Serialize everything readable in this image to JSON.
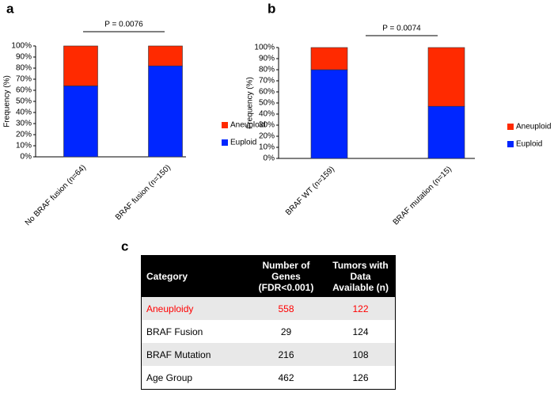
{
  "panels": [
    "a",
    "b",
    "c"
  ],
  "chart_data": [
    {
      "type": "bar",
      "stacked": true,
      "annotation": "P = 0.0076",
      "y_label": "Frequency (%)",
      "categories": [
        "No BRAF fusion (n=64)",
        "BRAF fusion (n=150)"
      ],
      "series": [
        {
          "name": "Euploid",
          "color": "#0026ff",
          "values": [
            64,
            82
          ]
        },
        {
          "name": "Aneuploid",
          "color": "#ff2a00",
          "values": [
            36,
            18
          ]
        }
      ],
      "ylim": [
        0,
        100
      ],
      "yticks": [
        {
          "value": 0,
          "label": "0%"
        },
        {
          "value": 10,
          "label": "10%"
        },
        {
          "value": 20,
          "label": "20%"
        },
        {
          "value": 30,
          "label": "30%"
        },
        {
          "value": 40,
          "label": "40%"
        },
        {
          "value": 50,
          "label": "50%"
        },
        {
          "value": 60,
          "label": "60%"
        },
        {
          "value": 70,
          "label": "70%"
        },
        {
          "value": 80,
          "label": "80%"
        },
        {
          "value": 90,
          "label": "90%"
        },
        {
          "value": 100,
          "label": "100%"
        }
      ]
    },
    {
      "type": "bar",
      "stacked": true,
      "annotation": "P = 0.0074",
      "y_label": "Frequency (%)",
      "categories": [
        "BRAF WT (n=159)",
        "BRAF mutation (n=15)"
      ],
      "series": [
        {
          "name": "Euploid",
          "color": "#0026ff",
          "values": [
            80,
            47
          ]
        },
        {
          "name": "Aneuploid",
          "color": "#ff2a00",
          "values": [
            20,
            53
          ]
        }
      ],
      "ylim": [
        0,
        100
      ],
      "yticks": [
        {
          "value": 0,
          "label": "0%"
        },
        {
          "value": 10,
          "label": "10%"
        },
        {
          "value": 20,
          "label": "20%"
        },
        {
          "value": 30,
          "label": "30%"
        },
        {
          "value": 40,
          "label": "40%"
        },
        {
          "value": 50,
          "label": "50%"
        },
        {
          "value": 60,
          "label": "60%"
        },
        {
          "value": 70,
          "label": "70%"
        },
        {
          "value": 80,
          "label": "80%"
        },
        {
          "value": 90,
          "label": "90%"
        },
        {
          "value": 100,
          "label": "100%"
        }
      ]
    }
  ],
  "table": {
    "header": [
      "Category",
      "Number of Genes (FDR<0.001)",
      "Tumors with Data Available (n)"
    ],
    "rows": [
      [
        "Aneuploidy",
        558,
        122
      ],
      [
        "BRAF Fusion",
        29,
        124
      ],
      [
        "BRAF Mutation",
        216,
        108
      ],
      [
        "Age Group",
        462,
        126
      ]
    ],
    "highlight_color": "#ff0000"
  }
}
